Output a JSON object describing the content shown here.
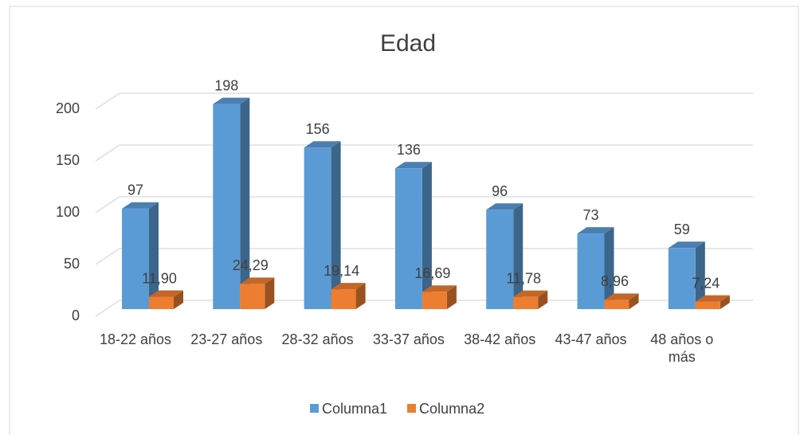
{
  "chart_data": {
    "type": "bar3d",
    "title": "Edad",
    "categories": [
      "18-22 años",
      "23-27 años",
      "28-32 años",
      "33-37 años",
      "38-42 años",
      "43-47 años",
      "48 años o más"
    ],
    "series": [
      {
        "name": "Columna1",
        "color": "#5b9bd5",
        "values": [
          97,
          198,
          156,
          136,
          96,
          73,
          59
        ]
      },
      {
        "name": "Columna2",
        "color": "#ed7d31",
        "values": [
          11.9,
          24.29,
          19.14,
          16.69,
          11.78,
          8.96,
          7.24
        ],
        "value_labels": [
          "11,90",
          "24,29",
          "19,14",
          "16,69",
          "11,78",
          "8,96",
          "7,24"
        ]
      }
    ],
    "ylim": [
      0,
      200
    ],
    "yticks": [
      0,
      50,
      100,
      150,
      200
    ],
    "grid": true,
    "legend": "bottom"
  }
}
